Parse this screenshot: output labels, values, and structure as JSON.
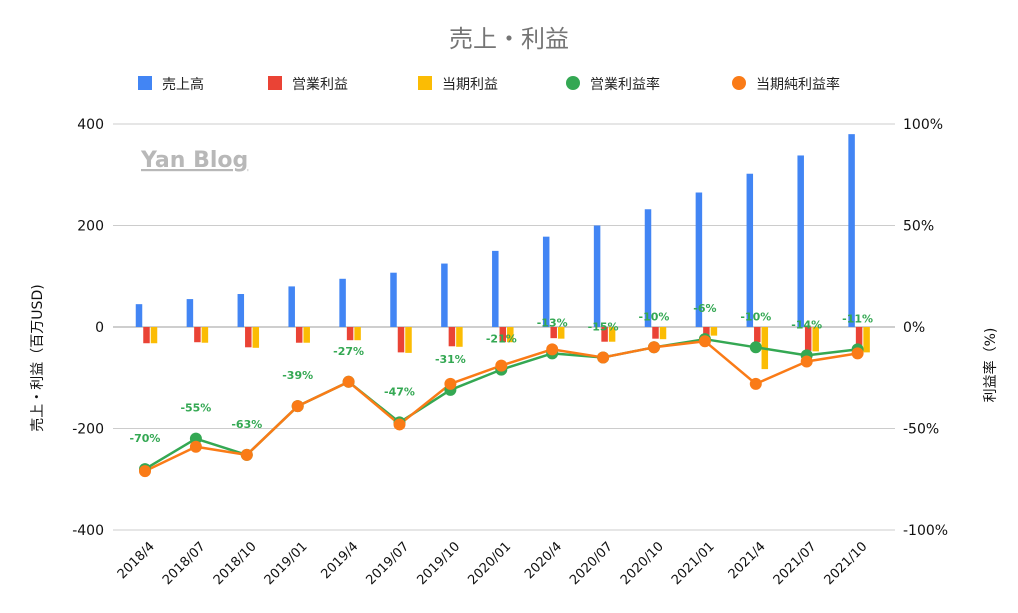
{
  "watermark": "Yan Blog",
  "chart_data": {
    "type": "bar+line",
    "title": "売上・利益",
    "categories": [
      "2018/4",
      "2018/07",
      "2018/10",
      "2019/01",
      "2019/4",
      "2019/07",
      "2019/10",
      "2020/01",
      "2020/4",
      "2020/07",
      "2020/10",
      "2021/01",
      "2021/4",
      "2021/07",
      "2021/10"
    ],
    "bar_series": [
      {
        "name": "売上高",
        "color": "#4285f4",
        "values": [
          45,
          55,
          65,
          80,
          95,
          107,
          125,
          150,
          178,
          200,
          232,
          265,
          302,
          338,
          380
        ]
      },
      {
        "name": "営業利益",
        "color": "#ea4335",
        "values": [
          -32,
          -30,
          -40,
          -31,
          -26,
          -50,
          -38,
          -30,
          -22,
          -29,
          -23,
          -16,
          -30,
          -47,
          -41
        ]
      },
      {
        "name": "当期利益",
        "color": "#fbbc04",
        "values": [
          -32,
          -31,
          -41,
          -31,
          -26,
          -51,
          -39,
          -30,
          -23,
          -29,
          -24,
          -17,
          -83,
          -48,
          -50
        ]
      }
    ],
    "line_series": [
      {
        "name": "営業利益率",
        "color": "#34a853",
        "values": [
          -70,
          -55,
          -63,
          -39,
          -27,
          -47,
          -31,
          -21,
          -13,
          -15,
          -10,
          -6,
          -10,
          -14,
          -11
        ]
      },
      {
        "name": "当期純利益率",
        "color": "#fa7b17",
        "values": [
          -71,
          -59,
          -63,
          -39,
          -27,
          -48,
          -28,
          -19,
          -11,
          -15,
          -10,
          -7,
          -28,
          -17,
          -13
        ]
      }
    ],
    "point_labels": [
      "-70%",
      "-55%",
      "-63%",
      "-39%",
      "-27%",
      "-47%",
      "-31%",
      "-21%",
      "-13%",
      "-15%",
      "-10%",
      "-6%",
      "-10%",
      "-14%",
      "-11%"
    ],
    "y_left": {
      "label": "売上・利益（百万USD)",
      "min": -400,
      "max": 400,
      "ticks": [
        "400",
        "200",
        "0",
        "-200",
        "-400"
      ]
    },
    "y_right": {
      "label": "利益率（%)",
      "min": -100,
      "max": 100,
      "ticks": [
        "100%",
        "50%",
        "0%",
        "-50%",
        "-100%"
      ]
    },
    "grid": true,
    "legend_position": "top"
  }
}
